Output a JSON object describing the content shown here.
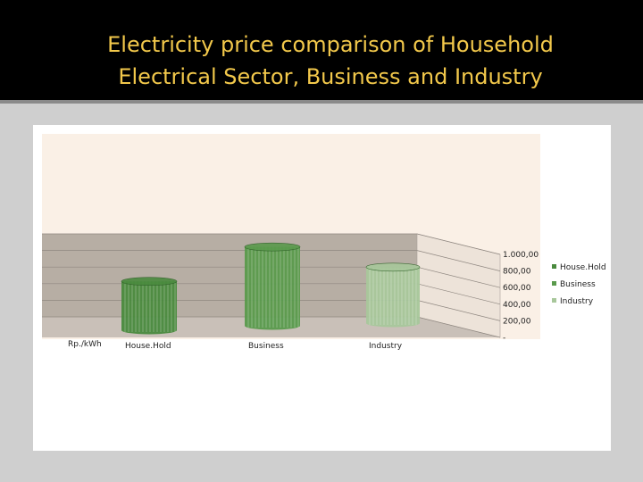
{
  "title_lines": [
    "Electricity price comparison of Household",
    "Electrical Sector, Business and Industry"
  ],
  "colors": {
    "title": "#f2c84b",
    "household": "#4a8a3e",
    "business": "#5a9a4c",
    "industry": "#a8c79b",
    "wall": "#b7aea4",
    "floor": "#c9c0b8",
    "plot_bg": "#faf0e6"
  },
  "chart_data": {
    "type": "bar",
    "style": "3d-cylinder",
    "ylabel": "Rp./kWh",
    "categories": [
      "House.Hold",
      "Business",
      "Industry"
    ],
    "values": [
      620,
      1000,
      710
    ],
    "yticks": [
      "-",
      "200,00",
      "400,00",
      "600,00",
      "800,00",
      "1.000,00"
    ],
    "ylim": [
      0,
      1000
    ],
    "legend": [
      "House.Hold",
      "Business",
      "Industry"
    ],
    "legend_position": "right",
    "grid": true
  }
}
